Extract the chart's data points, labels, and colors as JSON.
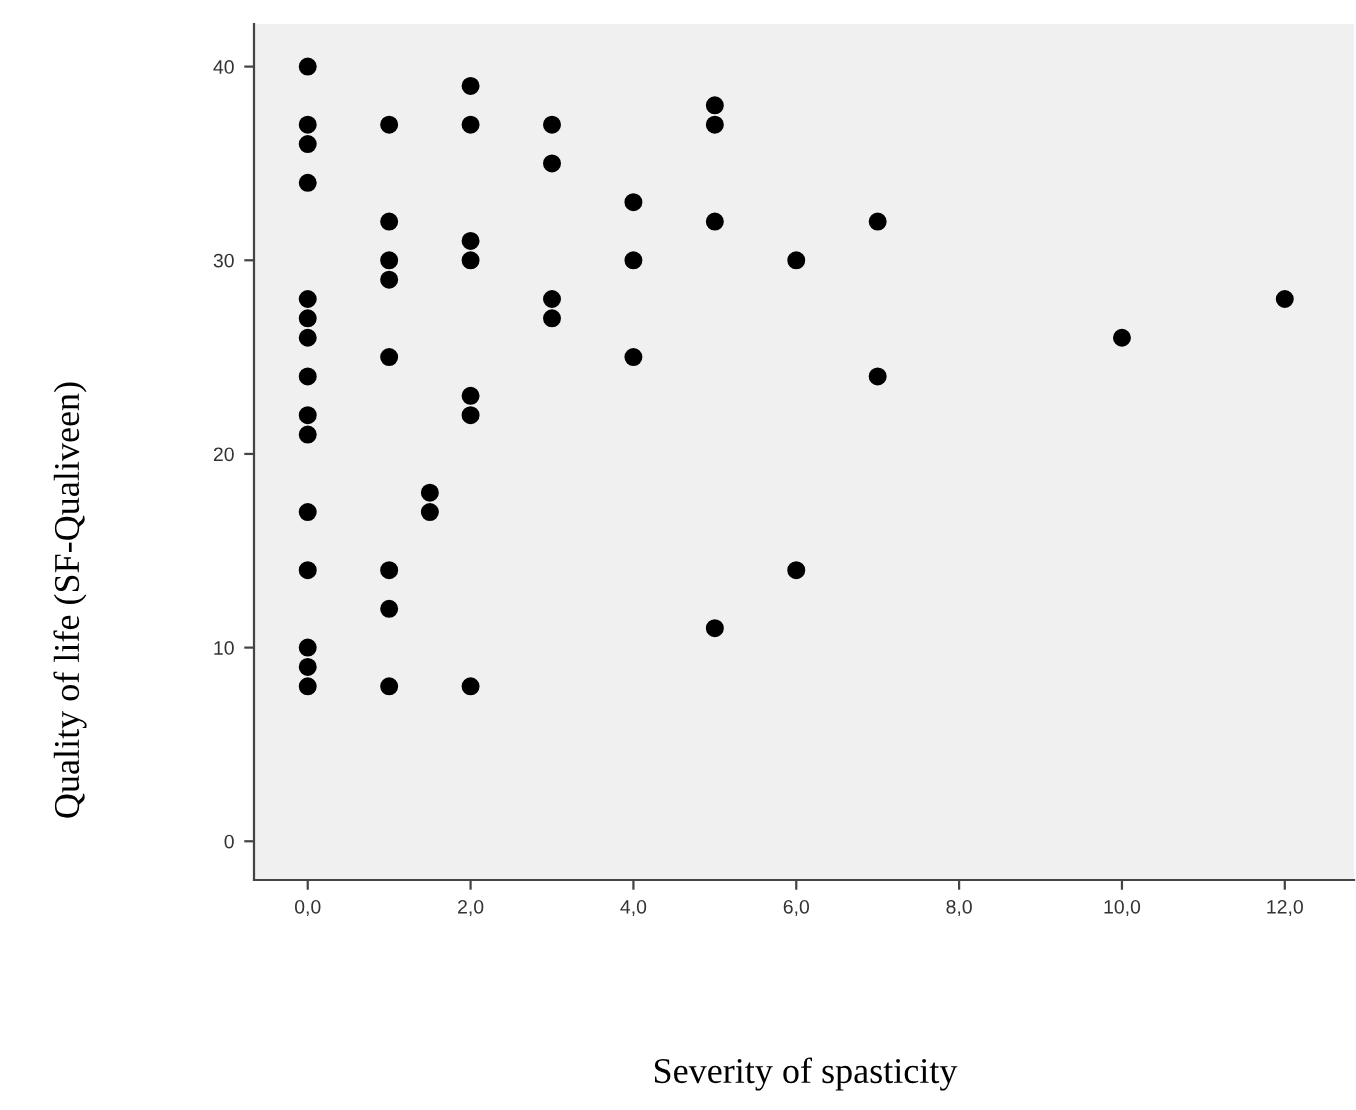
{
  "chart_data": {
    "type": "scatter",
    "xlabel": "Severity of spasticity",
    "ylabel": "Quality of life (SF-Qualiveen)",
    "x": [
      0,
      0,
      0,
      0,
      0,
      0,
      0,
      0,
      0,
      0,
      0,
      0,
      0,
      0,
      0,
      1,
      1,
      1,
      1,
      1,
      1,
      1,
      1,
      1.5,
      1.5,
      2,
      2,
      2,
      2,
      2,
      2,
      2,
      3,
      3,
      3,
      3,
      4,
      4,
      4,
      5,
      5,
      5,
      5,
      6,
      6,
      7,
      7,
      10,
      12
    ],
    "values": [
      40,
      37,
      36,
      34,
      28,
      27,
      26,
      24,
      22,
      21,
      17,
      14,
      10,
      9,
      8,
      37,
      32,
      30,
      29,
      25,
      14,
      12,
      8,
      18,
      17,
      39,
      37,
      31,
      30,
      23,
      22,
      8,
      37,
      35,
      28,
      27,
      33,
      30,
      25,
      38,
      37,
      32,
      11,
      30,
      14,
      32,
      24,
      26,
      28
    ],
    "color": "#000000",
    "marker": "circle",
    "xlim": [
      -0.66,
      12.85
    ],
    "ylim": [
      -2,
      42.2
    ],
    "xticks": [
      {
        "value": 0,
        "label": "0,0"
      },
      {
        "value": 2,
        "label": "2,0"
      },
      {
        "value": 4,
        "label": "4,0"
      },
      {
        "value": 6,
        "label": "6,0"
      },
      {
        "value": 8,
        "label": "8,0"
      },
      {
        "value": 10,
        "label": "10,0"
      },
      {
        "value": 12,
        "label": "12,0"
      }
    ],
    "yticks": [
      0,
      10,
      20,
      30,
      40
    ],
    "grid": false
  }
}
